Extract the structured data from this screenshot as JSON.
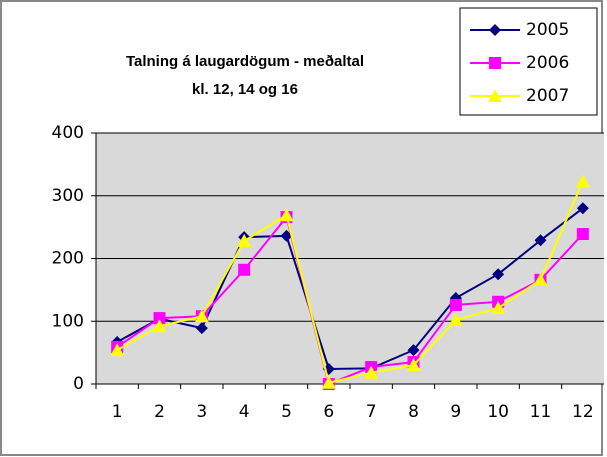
{
  "chart_data": {
    "type": "line",
    "title": "Talning á laugardögum - meðaltal",
    "subtitle": "kl. 12, 14 og 16",
    "categories": [
      "1",
      "2",
      "3",
      "4",
      "5",
      "6",
      "7",
      "8",
      "9",
      "10",
      "11",
      "12"
    ],
    "series": [
      {
        "name": "2005",
        "color": "#000080",
        "marker": "diamond",
        "values": [
          67,
          104,
          89,
          234,
          236,
          24,
          25,
          54,
          137,
          175,
          229,
          280
        ]
      },
      {
        "name": "2006",
        "color": "#ff00ff",
        "marker": "square",
        "values": [
          59,
          105,
          108,
          182,
          266,
          0,
          27,
          35,
          126,
          131,
          166,
          239
        ]
      },
      {
        "name": "2007",
        "color": "#ffff00",
        "marker": "triangle",
        "values": [
          54,
          92,
          108,
          228,
          269,
          2,
          18,
          30,
          102,
          121,
          166,
          323
        ]
      }
    ],
    "ylim": [
      0,
      400
    ],
    "yticks": [
      0,
      100,
      200,
      300,
      400
    ],
    "grid": true,
    "legend": "top-right"
  }
}
